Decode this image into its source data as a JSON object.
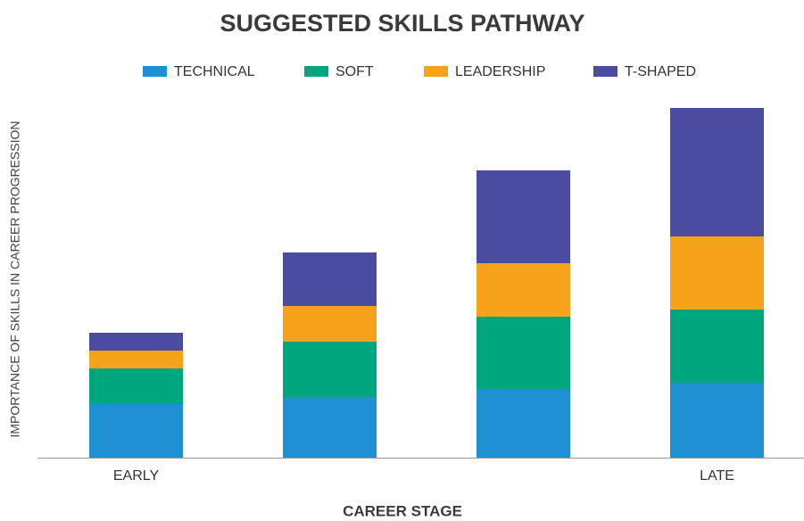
{
  "chart_data": {
    "type": "stacked_bar",
    "title": "SUGGESTED SKILLS PATHWAY",
    "x_label": "CAREER STAGE",
    "y_label": "IMPORTANCE OF SKILLS IN CAREER PROGRESSION",
    "categories": [
      "EARLY",
      null,
      null,
      "LATE"
    ],
    "series": [
      {
        "name": "TECHNICAL",
        "color": "#1f90d2",
        "values": [
          15,
          17,
          19,
          21
        ]
      },
      {
        "name": "SOFT",
        "color": "#00a77e",
        "values": [
          10,
          15.5,
          20.5,
          20.5
        ]
      },
      {
        "name": "LEADERSHIP",
        "color": "#f7a21b",
        "values": [
          5,
          10,
          15,
          20.5
        ]
      },
      {
        "name": "T-SHAPED",
        "color": "#4a4c9f",
        "values": [
          5,
          15,
          26,
          36
        ]
      }
    ],
    "ylim": [
      0,
      100
    ],
    "legend": "top"
  }
}
